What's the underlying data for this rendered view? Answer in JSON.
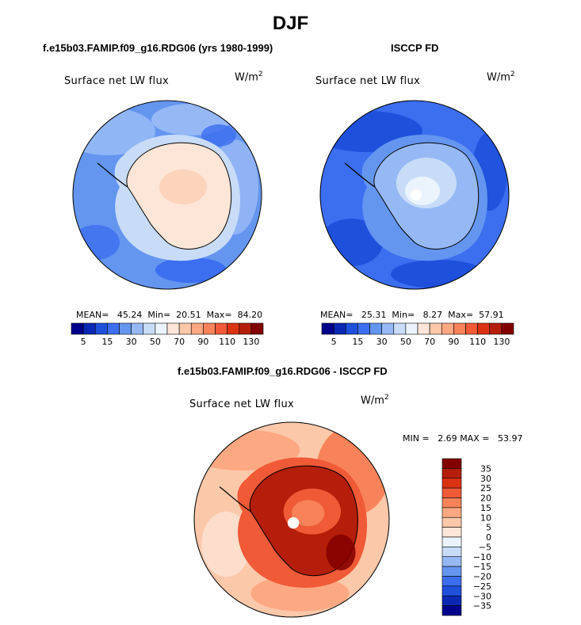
{
  "figure": {
    "season_title": "DJF",
    "field_label": "Surface net LW flux",
    "units_base": "W/m",
    "units_exp": "2"
  },
  "colors": {
    "abs_scale": [
      "#00008c",
      "#0a28b4",
      "#1e50dc",
      "#3c6ef0",
      "#6496f0",
      "#96b9f5",
      "#c8dcf8",
      "#ebf4fc",
      "#fde6d8",
      "#fcc8aa",
      "#fca882",
      "#f8835a",
      "#f05a37",
      "#dc3214",
      "#b41e0a",
      "#820000"
    ],
    "diff_scale": [
      "#00008c",
      "#0a28b4",
      "#1e50dc",
      "#3c6ef0",
      "#6496f0",
      "#96b9f5",
      "#c8dcf8",
      "#ebf4fc",
      "#fde6d8",
      "#fcc8aa",
      "#fca882",
      "#f8835a",
      "#f05a37",
      "#dc3214",
      "#b41e0a",
      "#820000"
    ],
    "coastline": "#000000"
  },
  "panels": {
    "model": {
      "title": "f.e15b03.FAMIP.f09_g16.RDG06 (yrs 1980-1999)",
      "stats": {
        "mean_label": "MEAN=",
        "mean": "45.24",
        "min_label": "Min=",
        "min": "20.51",
        "max_label": "Max=",
        "max": "84.20"
      }
    },
    "obs": {
      "title": "ISCCP FD",
      "stats": {
        "mean_label": "MEAN=",
        "mean": "25.31",
        "min_label": "Min=",
        "min": "8.27",
        "max_label": "Max=",
        "max": "57.91"
      }
    },
    "diff": {
      "title": "f.e15b03.FAMIP.f09_g16.RDG06 - ISCCP FD",
      "stats": {
        "min_label": "MIN =",
        "min": "2.69",
        "max_label": "MAX =",
        "max": "53.97"
      }
    }
  },
  "chart_data": [
    {
      "type": "heatmap",
      "projection": "south-polar-stereographic",
      "title": "f.e15b03.FAMIP.f09_g16.RDG06 (yrs 1980-1999)",
      "variable": "Surface net LW flux",
      "units": "W/m2",
      "contour_levels": [
        5,
        10,
        15,
        20,
        30,
        40,
        50,
        60,
        70,
        80,
        90,
        100,
        110,
        120,
        130
      ],
      "colorbar_tick_labels": [
        "5",
        "15",
        "30",
        "50",
        "70",
        "90",
        "110",
        "130"
      ],
      "mean": 45.24,
      "min": 20.51,
      "max": 84.2
    },
    {
      "type": "heatmap",
      "projection": "south-polar-stereographic",
      "title": "ISCCP FD",
      "variable": "Surface net LW flux",
      "units": "W/m2",
      "contour_levels": [
        5,
        10,
        15,
        20,
        30,
        40,
        50,
        60,
        70,
        80,
        90,
        100,
        110,
        120,
        130
      ],
      "colorbar_tick_labels": [
        "5",
        "15",
        "30",
        "50",
        "70",
        "90",
        "110",
        "130"
      ],
      "mean": 25.31,
      "min": 8.27,
      "max": 57.91
    },
    {
      "type": "heatmap",
      "projection": "south-polar-stereographic",
      "title": "f.e15b03.FAMIP.f09_g16.RDG06 - ISCCP FD",
      "variable": "Surface net LW flux",
      "units": "W/m2",
      "contour_levels": [
        -35,
        -30,
        -25,
        -20,
        -15,
        -10,
        -5,
        0,
        5,
        10,
        15,
        20,
        25,
        30,
        35
      ],
      "colorbar_tick_labels": [
        "35",
        "30",
        "25",
        "20",
        "15",
        "10",
        "5",
        "0",
        "−5",
        "−10",
        "−15",
        "−20",
        "−25",
        "−30",
        "−35"
      ],
      "min": 2.69,
      "max": 53.97
    }
  ]
}
